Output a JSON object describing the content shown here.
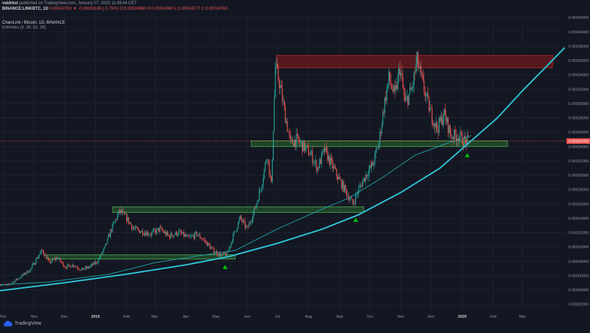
{
  "header": {
    "author": "valdrkst",
    "published_text": "published on TradingView.com, January 07, 2020 11:49:44 CET",
    "symbol": "BINANCE:LINKBTC, 1D",
    "last": "0.00024763",
    "change": "-0.00000188 (-0.75%)",
    "ohlc": "O:0.00024960 H:0.00024960 L:0.00024177 C:0.00024763",
    "pair_name": "ChainLink / Bitcoin, 1D, BINANCE",
    "indicator": "Ichimoku (9, 26, 52, 26)"
  },
  "brand": {
    "label": "TradingView"
  },
  "colors": {
    "background": "#131722",
    "grid": "#1e222d",
    "up_candle": "#26a69a",
    "down_candle": "#ef5350",
    "resistance_zone": "#8b1a1a",
    "support_zone": "#2e7d32",
    "support_curve": "#2ec4d6",
    "kumo_line": "#1f9fa8",
    "arrow": "#00c000",
    "price_label": "#ef5350"
  },
  "chart_data": {
    "type": "candlestick",
    "title": "ChainLink / Bitcoin, 1D, BINANCE",
    "x_ticks": [
      "Oct",
      "Nov",
      "Dec",
      "2019",
      "Feb",
      "Mar",
      "Apr",
      "May",
      "Jun",
      "Jul",
      "Aug",
      "Sep",
      "Oct",
      "Nov",
      "Dec",
      "2020",
      "Feb",
      "Mar"
    ],
    "x_tick_dates": [
      "2018-10",
      "2018-11",
      "2018-12",
      "2019-01",
      "2019-02",
      "2019-03",
      "2019-04",
      "2019-05",
      "2019-06",
      "2019-07",
      "2019-08",
      "2019-09",
      "2019-10",
      "2019-11",
      "2019-12",
      "2020-01",
      "2020-02",
      "2020-03"
    ],
    "y_ticks": [
      "0.00042000",
      "0.00040000",
      "0.00038000",
      "0.00036000",
      "0.00034000",
      "0.00032000",
      "0.00030000",
      "0.00028000",
      "0.00026000",
      "0.00024000",
      "0.00022000",
      "0.00020000",
      "0.00018000",
      "0.00016000",
      "0.00014000",
      "0.00012000",
      "0.00010000",
      "0.00008000",
      "0.00006000",
      "0.00004000",
      "0.00002000"
    ],
    "y_range": [
      1e-05,
      0.000425
    ],
    "last_price_label": "0.00024763",
    "last_price": 0.00024763,
    "price_path": [
      [
        "2018-09-28",
        4.8e-05
      ],
      [
        "2018-10-05",
        4.6e-05
      ],
      [
        "2018-10-12",
        5.2e-05
      ],
      [
        "2018-10-20",
        6e-05
      ],
      [
        "2018-10-28",
        6.8e-05
      ],
      [
        "2018-11-04",
        8.5e-05
      ],
      [
        "2018-11-09",
        9.5e-05
      ],
      [
        "2018-11-16",
        7.8e-05
      ],
      [
        "2018-11-24",
        8.5e-05
      ],
      [
        "2018-12-02",
        7.2e-05
      ],
      [
        "2018-12-10",
        7.5e-05
      ],
      [
        "2018-12-18",
        6.8e-05
      ],
      [
        "2018-12-26",
        7.2e-05
      ],
      [
        "2019-01-03",
        8e-05
      ],
      [
        "2019-01-10",
        9.8e-05
      ],
      [
        "2019-01-17",
        0.000125
      ],
      [
        "2019-01-25",
        0.00015
      ],
      [
        "2019-02-01",
        0.00014
      ],
      [
        "2019-02-08",
        0.000125
      ],
      [
        "2019-02-15",
        0.000122
      ],
      [
        "2019-02-25",
        0.000118
      ],
      [
        "2019-03-06",
        0.000125
      ],
      [
        "2019-03-15",
        0.000115
      ],
      [
        "2019-03-25",
        0.00012
      ],
      [
        "2019-04-04",
        0.000112
      ],
      [
        "2019-04-12",
        0.000118
      ],
      [
        "2019-04-20",
        0.000108
      ],
      [
        "2019-04-28",
        9.5e-05
      ],
      [
        "2019-05-06",
        8.8e-05
      ],
      [
        "2019-05-12",
        9e-05
      ],
      [
        "2019-05-18",
        0.000115
      ],
      [
        "2019-05-25",
        0.00014
      ],
      [
        "2019-06-01",
        0.000125
      ],
      [
        "2019-06-08",
        0.00015
      ],
      [
        "2019-06-15",
        0.000185
      ],
      [
        "2019-06-21",
        0.00023
      ],
      [
        "2019-06-25",
        0.000185
      ],
      [
        "2019-06-29",
        0.00035
      ],
      [
        "2019-07-03",
        0.00033
      ],
      [
        "2019-07-08",
        0.00029
      ],
      [
        "2019-07-14",
        0.000245
      ],
      [
        "2019-07-20",
        0.00025
      ],
      [
        "2019-07-27",
        0.00024
      ],
      [
        "2019-08-03",
        0.00023
      ],
      [
        "2019-08-10",
        0.00021
      ],
      [
        "2019-08-17",
        0.000235
      ],
      [
        "2019-08-24",
        0.000215
      ],
      [
        "2019-08-31",
        0.000195
      ],
      [
        "2019-09-07",
        0.000178
      ],
      [
        "2019-09-14",
        0.00016
      ],
      [
        "2019-09-20",
        0.00018
      ],
      [
        "2019-09-27",
        0.0002
      ],
      [
        "2019-10-04",
        0.000215
      ],
      [
        "2019-10-10",
        0.000245
      ],
      [
        "2019-10-15",
        0.000295
      ],
      [
        "2019-10-20",
        0.000335
      ],
      [
        "2019-10-26",
        0.00031
      ],
      [
        "2019-10-31",
        0.00035
      ],
      [
        "2019-11-05",
        0.0003
      ],
      [
        "2019-11-12",
        0.00032
      ],
      [
        "2019-11-17",
        0.00036
      ],
      [
        "2019-11-23",
        0.000325
      ],
      [
        "2019-11-30",
        0.00029
      ],
      [
        "2019-12-07",
        0.000265
      ],
      [
        "2019-12-14",
        0.000285
      ],
      [
        "2019-12-21",
        0.000255
      ],
      [
        "2019-12-28",
        0.000255
      ],
      [
        "2020-01-03",
        0.000248
      ],
      [
        "2020-01-07",
        0.00024763
      ]
    ],
    "zones": [
      {
        "name": "resistance",
        "color": "red",
        "from": "2019-06-30",
        "to": "2020-03-31",
        "low": 0.00035,
        "high": 0.000367
      },
      {
        "name": "support-top",
        "color": "green",
        "from": "2019-06-05",
        "to": "2020-02-15",
        "low": 0.00024,
        "high": 0.000248
      },
      {
        "name": "support-mid",
        "color": "green",
        "from": "2019-01-18",
        "to": "2019-09-25",
        "low": 0.000148,
        "high": 0.000156
      },
      {
        "name": "support-low",
        "color": "green",
        "from": "2018-11-14",
        "to": "2019-05-20",
        "low": 8.3e-05,
        "high": 8.9e-05
      }
    ],
    "support_curve": [
      [
        "2018-09-28",
        3.9e-05
      ],
      [
        "2018-12-01",
        5e-05
      ],
      [
        "2019-02-01",
        6.2e-05
      ],
      [
        "2019-04-01",
        7.5e-05
      ],
      [
        "2019-05-15",
        8.7e-05
      ],
      [
        "2019-07-01",
        0.000105
      ],
      [
        "2019-08-15",
        0.000125
      ],
      [
        "2019-09-20",
        0.000145
      ],
      [
        "2019-11-01",
        0.000176
      ],
      [
        "2019-12-10",
        0.00021
      ],
      [
        "2020-01-10",
        0.000248
      ],
      [
        "2020-02-05",
        0.00028
      ],
      [
        "2020-03-01",
        0.000318
      ],
      [
        "2020-03-25",
        0.000352
      ],
      [
        "2020-04-12",
        0.000378
      ]
    ],
    "kumo_line": [
      [
        "2018-09-28",
        4.7e-05
      ],
      [
        "2018-11-15",
        5.1e-05
      ],
      [
        "2019-01-15",
        6.2e-05
      ],
      [
        "2019-03-01",
        7.8e-05
      ],
      [
        "2019-04-15",
        8.8e-05
      ],
      [
        "2019-05-20",
        9.5e-05
      ],
      [
        "2019-07-01",
        0.000125
      ],
      [
        "2019-08-10",
        0.00015
      ],
      [
        "2019-09-10",
        0.000168
      ],
      [
        "2019-10-15",
        0.000198
      ],
      [
        "2019-11-15",
        0.000228
      ],
      [
        "2019-12-20",
        0.000246
      ],
      [
        "2020-01-10",
        0.000255
      ]
    ],
    "arrows": [
      {
        "date": "2019-05-10",
        "price": 7.2e-05
      },
      {
        "date": "2019-09-17",
        "price": 0.000138
      },
      {
        "date": "2020-01-06",
        "price": 0.000228
      }
    ]
  }
}
